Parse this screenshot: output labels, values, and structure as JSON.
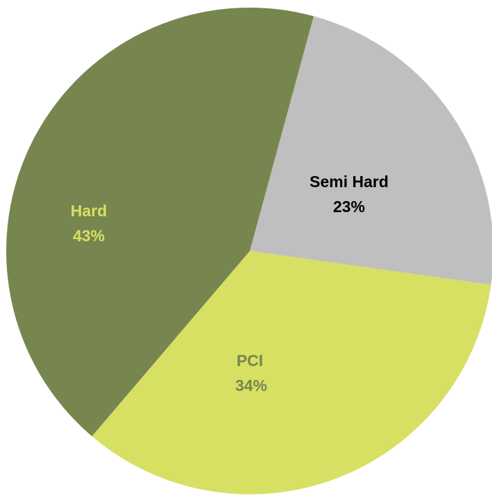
{
  "chart_data": {
    "type": "pie",
    "categories": [
      "Semi Hard",
      "PCI",
      "Hard"
    ],
    "values": [
      23,
      34,
      43
    ],
    "value_labels": [
      "23%",
      "34%",
      "43%"
    ],
    "colors": [
      "#bfbfbf",
      "#d7e062",
      "#77864f"
    ],
    "label_colors": [
      "#000000",
      "#77864f",
      "#d7e062"
    ]
  }
}
